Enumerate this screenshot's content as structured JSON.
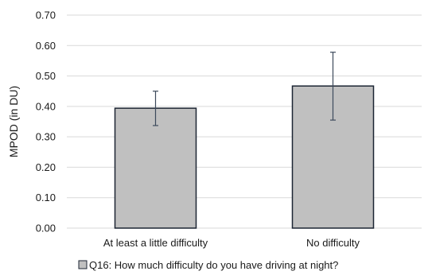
{
  "chart_data": {
    "type": "bar",
    "categories": [
      "At least a little difficulty",
      "No difficulty"
    ],
    "series": [
      {
        "name": "Q16: How much difficulty do you have driving at night?",
        "values": [
          0.394,
          0.467
        ],
        "error_low": [
          0.337,
          0.355
        ],
        "error_high": [
          0.45,
          0.578
        ]
      }
    ],
    "yticks": [
      "0.00",
      "0.10",
      "0.20",
      "0.30",
      "0.40",
      "0.50",
      "0.60",
      "0.70"
    ],
    "ylabel": "MPOD (in DU)",
    "xlabel": "",
    "title": "",
    "ylim": [
      0,
      0.7
    ],
    "grid": true,
    "legend_position": "bottom",
    "colors": {
      "bar_fill": "#c0c0c0",
      "bar_stroke": "#1c2533",
      "error_bar": "#3d4a5c",
      "gridline": "#d9d9d9",
      "text": "#1a1a1a"
    }
  }
}
